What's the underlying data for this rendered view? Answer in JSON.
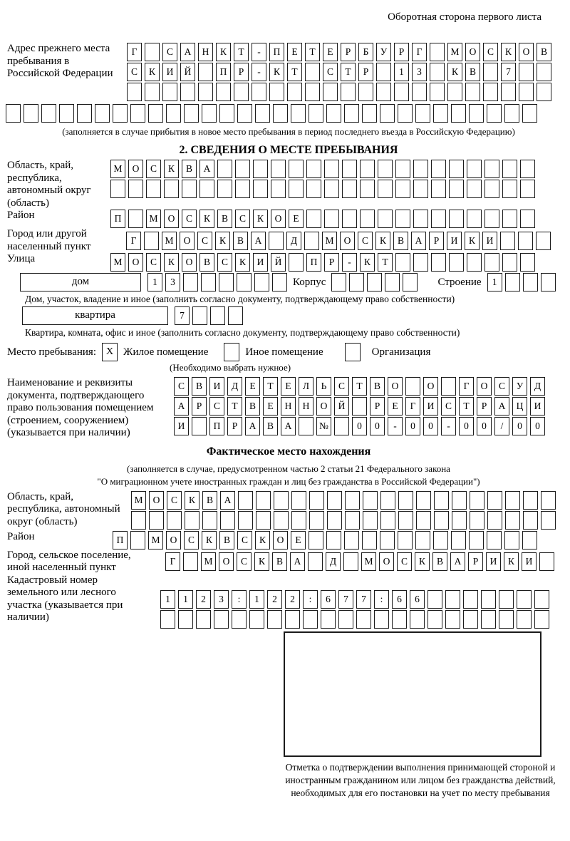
{
  "page": {
    "header_note": "Оборотная сторона первого листа"
  },
  "prev_address": {
    "label": "Адрес прежнего места пребывания в Российской Федерации",
    "rows": [
      {
        "text": "Г САНКТ-ПЕТЕРБУРГ МОСКОВ",
        "len": 24
      },
      {
        "text": "СКИЙ ПР-КТ СТР 13 КВ 7",
        "len": 24
      },
      {
        "text": "",
        "len": 24
      },
      {
        "text": "",
        "len": 30
      }
    ],
    "note": "(заполняется в случае прибытия в новое место пребывания в период последнего въезда в Российскую Федерацию)"
  },
  "section2": {
    "title": "2. СВЕДЕНИЯ О МЕСТЕ ПРЕБЫВАНИЯ",
    "oblast": {
      "label": "Область, край, республика, автономный округ (область)",
      "rows": [
        {
          "text": "МОСКВА",
          "len": 24
        },
        {
          "text": "",
          "len": 24
        }
      ]
    },
    "raion": {
      "label": "Район",
      "cells": {
        "text": "П МОСКВСКОЕ",
        "len": 24
      }
    },
    "gorod": {
      "label": "Город или другой населенный пункт",
      "cells": {
        "text": "Г МОСКВА Д МОСКВАРИКИ",
        "len": 24
      }
    },
    "ulitsa": {
      "label": "Улица",
      "cells": {
        "text": "МОСКОВСКИЙ ПР-КТ",
        "len": 24
      }
    },
    "dom": {
      "label": "дом",
      "cells": {
        "text": "13",
        "len": 8
      },
      "korpus_label": "Корпус",
      "korpus_cells": {
        "text": "",
        "len": 5
      },
      "stroenie_label": "Строение",
      "stroenie_cells": {
        "text": "1",
        "len": 4
      }
    },
    "dom_note": "Дом, участок, владение и иное (заполнить согласно документу, подтверждающему право собственности)",
    "kvartira": {
      "label": "квартира",
      "cells": {
        "text": "7",
        "len": 4
      }
    },
    "kvartira_note": "Квартира, комната, офис и иное (заполнить согласно документу, подтверждающему право собственности)",
    "mesto": {
      "label": "Место пребывания:",
      "options": [
        {
          "label": "Жилое помещение",
          "checked": "X"
        },
        {
          "label": "Иное помещение",
          "checked": ""
        },
        {
          "label": "Организация",
          "checked": ""
        }
      ],
      "note": "(Необходимо выбрать нужное)"
    },
    "document": {
      "label": "Наименование и реквизиты документа, подтверждающего право пользования помещением (строением, сооружением) (указывается при наличии)",
      "rows": [
        {
          "text": "СВИДЕТЕЛЬСТВО О ГОСУД",
          "len": 21
        },
        {
          "text": "АРСТВЕННОЙ РЕГИСТРАЦИ",
          "len": 21
        },
        {
          "text": "И ПРАВА № 00-00-00/000",
          "len": 21
        }
      ]
    }
  },
  "actual_location": {
    "title": "Фактическое место нахождения",
    "note1": "(заполняется в случае, предусмотренном частью 2 статьи 21 Федерального закона",
    "note2": "\"О миграционном учете иностранных граждан и лиц без гражданства в Российской Федерации\")",
    "oblast": {
      "label": "Область, край, республика, автономный округ (область)",
      "rows": [
        {
          "text": "МОСКВА",
          "len": 24
        },
        {
          "text": "",
          "len": 24
        }
      ]
    },
    "raion": {
      "label": "Район",
      "cells": {
        "text": "П МОСКВСКОЕ",
        "len": 24
      }
    },
    "gorod": {
      "label": "Город, сельское поселение, иной населенный пункт",
      "cells": {
        "text": "Г МОСКВА Д МОСКВАРИКИ",
        "len": 22
      }
    },
    "kadastr": {
      "label": "Кадастровый номер земельного или лесного участка (указывается при наличии)",
      "rows": [
        {
          "text": "1123:122:677:66",
          "len": 22
        },
        {
          "text": "",
          "len": 22
        }
      ]
    },
    "stamp_note": "Отметка о подтверждении выполнения принимающей стороной и иностранным гражданином или лицом без гражданства действий, необходимых для его постановки на учет по месту пребывания"
  }
}
